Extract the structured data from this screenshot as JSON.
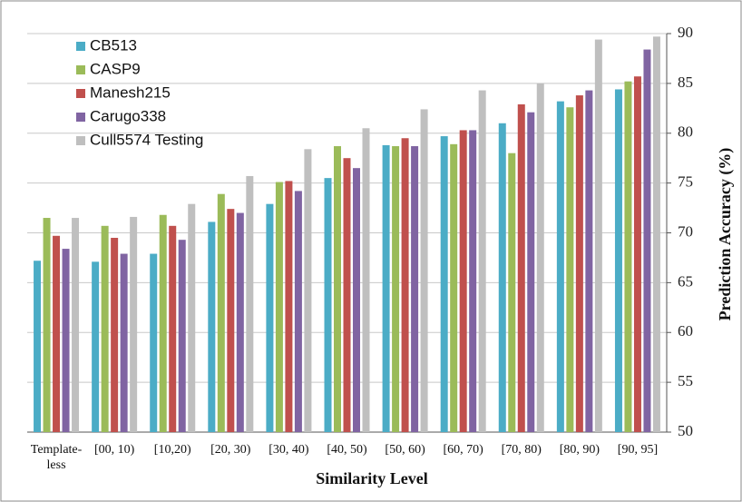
{
  "chart_data": {
    "type": "bar",
    "xlabel": "Similarity Level",
    "ylabel": "Prediction Accuracy (%)",
    "categories": [
      "Template-less",
      "[00, 10)",
      "[10,20)",
      "[20, 30)",
      "[30, 40)",
      "[40, 50)",
      "[50, 60)",
      "[60, 70)",
      "[70, 80)",
      "[80, 90)",
      "[90, 95]"
    ],
    "series": [
      {
        "name": "CB513",
        "color": "#4bacc6",
        "values": [
          67.2,
          67.1,
          67.9,
          71.1,
          72.9,
          75.5,
          78.8,
          79.7,
          81.0,
          83.2,
          84.4
        ]
      },
      {
        "name": "CASP9",
        "color": "#9bbb59",
        "values": [
          71.5,
          70.7,
          71.8,
          73.9,
          75.1,
          78.7,
          78.7,
          78.9,
          78.0,
          82.6,
          85.2
        ]
      },
      {
        "name": "Manesh215",
        "color": "#c0504d",
        "values": [
          69.7,
          69.5,
          70.7,
          72.4,
          75.2,
          77.5,
          79.5,
          80.3,
          82.9,
          83.8,
          85.7
        ]
      },
      {
        "name": "Carugo338",
        "color": "#8064a2",
        "values": [
          68.4,
          67.9,
          69.3,
          72.0,
          74.2,
          76.5,
          78.7,
          80.3,
          82.1,
          84.3,
          88.4
        ]
      },
      {
        "name": "Cull5574 Testing",
        "color": "#bfbfbf",
        "values": [
          71.5,
          71.6,
          72.9,
          75.7,
          78.4,
          80.5,
          82.4,
          84.3,
          85.0,
          89.4,
          89.7
        ]
      }
    ],
    "ylim": [
      50,
      90
    ],
    "yticks": [
      50,
      55,
      60,
      65,
      70,
      75,
      80,
      85,
      90
    ],
    "grid": true
  }
}
